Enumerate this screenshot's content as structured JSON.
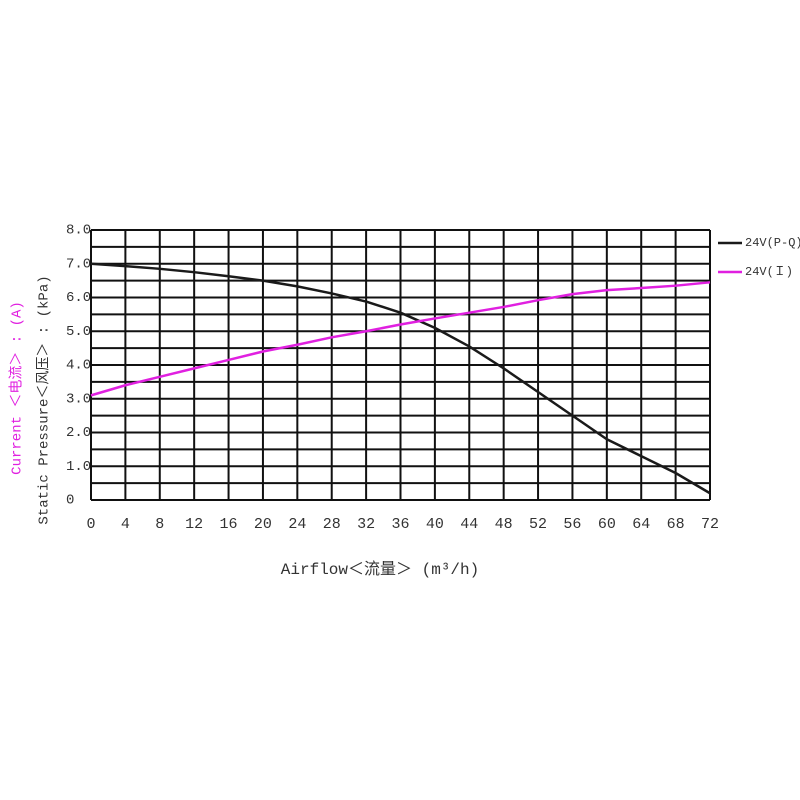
{
  "chart_data": {
    "type": "line",
    "xlabel": "Airflow＜流量＞ (m³/h)",
    "ylabel": "Static Pressure＜风压＞ : (kPa)",
    "y2label": "Current  ＜电流＞ : (A)",
    "x": [
      0,
      4,
      8,
      12,
      16,
      20,
      24,
      28,
      32,
      36,
      40,
      44,
      48,
      52,
      56,
      60,
      64,
      68,
      72
    ],
    "series": [
      {
        "name": "24V(P-Q)",
        "color": "#1a1a1a",
        "values": [
          7.0,
          6.93,
          6.85,
          6.75,
          6.63,
          6.5,
          6.33,
          6.12,
          5.88,
          5.55,
          5.1,
          4.55,
          3.9,
          3.2,
          2.5,
          1.8,
          1.3,
          0.8,
          0.2
        ]
      },
      {
        "name": "24V(Ｉ)",
        "color": "#e020e0",
        "values": [
          3.1,
          3.4,
          3.65,
          3.9,
          4.15,
          4.4,
          4.6,
          4.82,
          5.0,
          5.2,
          5.38,
          5.55,
          5.72,
          5.92,
          6.1,
          6.22,
          6.28,
          6.35,
          6.45
        ]
      }
    ],
    "xlim": [
      0,
      72
    ],
    "xticks": [
      0,
      4,
      8,
      12,
      16,
      20,
      24,
      28,
      32,
      36,
      40,
      44,
      48,
      52,
      56,
      60,
      64,
      68,
      72
    ],
    "ylim": [
      0,
      8
    ],
    "yticks": [
      0,
      {
        "value": 1,
        "label": "1.0"
      },
      {
        "value": 2,
        "label": "2.0"
      },
      {
        "value": 3,
        "label": "3.0"
      },
      {
        "value": 4,
        "label": "4.0"
      },
      {
        "value": 5,
        "label": "5.0"
      },
      {
        "value": 6,
        "label": "6.0"
      },
      {
        "value": 7,
        "label": "7.0"
      },
      {
        "value": 8,
        "label": "8.0"
      }
    ],
    "yminor": [
      0.5,
      1.5,
      2.5,
      3.5,
      4.5,
      5.5,
      6.5,
      7.5
    ],
    "grid": true
  }
}
